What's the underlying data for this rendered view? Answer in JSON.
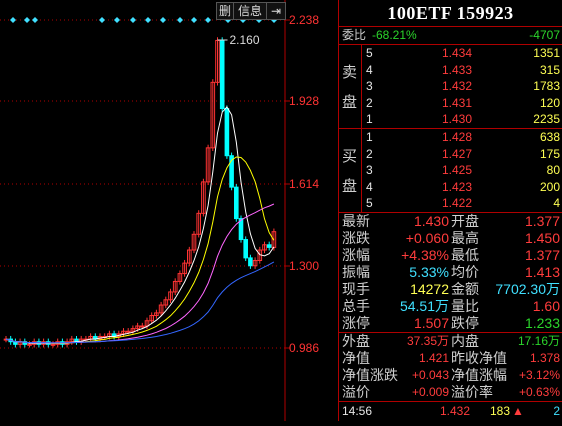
{
  "chart": {
    "toolbar": {
      "delete_label": "删",
      "info_label": "信息",
      "pin_glyph": "⇥"
    },
    "axis_labels": [
      "2.238",
      "1.928",
      "1.614",
      "1.300",
      "0.986"
    ],
    "price_marker": "2.160",
    "colors": {
      "up": "#ff3333",
      "down": "#00ffff",
      "ma5": "#ffffff",
      "ma10": "#ffff00",
      "ma20": "#ff66ff",
      "ma60": "#3366ff",
      "grid": "#b00000",
      "axis_text": "#ff3333"
    }
  },
  "panel": {
    "title": "100ETF 159923",
    "weibi": {
      "label": "委比",
      "pct": "-68.21%",
      "diff": "-4707"
    },
    "sell_label": [
      "卖",
      "盘"
    ],
    "buy_label": [
      "买",
      "盘"
    ],
    "sell": [
      {
        "lvl": "5",
        "price": "1.434",
        "vol": "1351"
      },
      {
        "lvl": "4",
        "price": "1.433",
        "vol": "315"
      },
      {
        "lvl": "3",
        "price": "1.432",
        "vol": "1783"
      },
      {
        "lvl": "2",
        "price": "1.431",
        "vol": "120"
      },
      {
        "lvl": "1",
        "price": "1.430",
        "vol": "2235"
      }
    ],
    "buy": [
      {
        "lvl": "1",
        "price": "1.428",
        "vol": "638"
      },
      {
        "lvl": "2",
        "price": "1.427",
        "vol": "175"
      },
      {
        "lvl": "3",
        "price": "1.425",
        "vol": "80"
      },
      {
        "lvl": "4",
        "price": "1.423",
        "vol": "200"
      },
      {
        "lvl": "5",
        "price": "1.422",
        "vol": "4"
      }
    ],
    "stats": [
      {
        "l1": "最新",
        "v1": "1.430",
        "c1": "red",
        "l2": "开盘",
        "v2": "1.377",
        "c2": "red"
      },
      {
        "l1": "涨跌",
        "v1": "+0.060",
        "c1": "red",
        "l2": "最高",
        "v2": "1.450",
        "c2": "red"
      },
      {
        "l1": "涨幅",
        "v1": "+4.38%",
        "c1": "red",
        "l2": "最低",
        "v2": "1.377",
        "c2": "red"
      },
      {
        "l1": "振幅",
        "v1": "5.33%",
        "c1": "cyan",
        "l2": "均价",
        "v2": "1.413",
        "c2": "red"
      },
      {
        "l1": "现手",
        "v1": "14272",
        "c1": "yellow",
        "l2": "金额",
        "v2": "7702.30万",
        "c2": "cyan"
      },
      {
        "l1": "总手",
        "v1": "54.51万",
        "c1": "cyan",
        "l2": "量比",
        "v2": "1.60",
        "c2": "red"
      },
      {
        "l1": "涨停",
        "v1": "1.507",
        "c1": "red",
        "l2": "跌停",
        "v2": "1.233",
        "c2": "green"
      }
    ],
    "stats2": [
      {
        "l1": "外盘",
        "v1": "37.35万",
        "c1": "red",
        "l2": "内盘",
        "v2": "17.16万",
        "c2": "green"
      },
      {
        "l1": "净值",
        "v1": "1.421",
        "c1": "red",
        "l2": "昨收净值",
        "v2": "1.378",
        "c2": "red"
      },
      {
        "l1": "净值涨跌",
        "v1": "+0.043",
        "c1": "red",
        "l2": "净值涨幅",
        "v2": "+3.12%",
        "c2": "red"
      },
      {
        "l1": "溢价",
        "v1": "+0.009",
        "c1": "red",
        "l2": "溢价率",
        "v2": "+0.63%",
        "c2": "red"
      }
    ],
    "tick": {
      "time": "14:56",
      "price": "1.432",
      "vol": "183",
      "arrow": "▲",
      "count": "2"
    }
  }
}
